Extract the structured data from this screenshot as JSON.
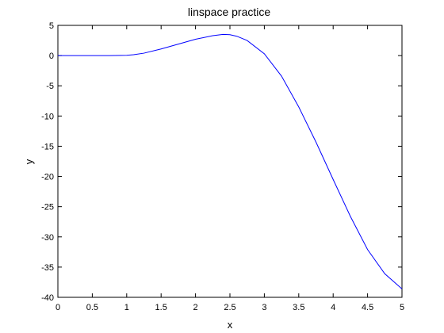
{
  "chart_data": {
    "type": "line",
    "title": "linspace practice",
    "xlabel": "x",
    "ylabel": "y",
    "xlim": [
      0,
      5
    ],
    "ylim": [
      -40,
      5
    ],
    "xticks": [
      0,
      0.5,
      1,
      1.5,
      2,
      2.5,
      3,
      3.5,
      4,
      4.5,
      5
    ],
    "xtick_labels": [
      "0",
      "0.5",
      "1",
      "1.5",
      "2",
      "2.5",
      "3",
      "3.5",
      "4",
      "4.5",
      "5"
    ],
    "yticks": [
      -40,
      -35,
      -30,
      -25,
      -20,
      -15,
      -10,
      -5,
      0,
      5
    ],
    "ytick_labels": [
      "-40",
      "-35",
      "-30",
      "-25",
      "-20",
      "-15",
      "-10",
      "-5",
      "0",
      "5"
    ],
    "grid": false,
    "series": [
      {
        "color": "#0000ff",
        "x": [
          0,
          0.25,
          0.5,
          0.75,
          1.0,
          1.1,
          1.25,
          1.5,
          1.75,
          2.0,
          2.25,
          2.4,
          2.5,
          2.6,
          2.75,
          3.0,
          3.25,
          3.5,
          3.75,
          4.0,
          4.25,
          4.5,
          4.75,
          5.0
        ],
        "y": [
          0,
          0,
          0,
          0,
          0.05,
          0.15,
          0.4,
          1.1,
          1.9,
          2.7,
          3.3,
          3.5,
          3.45,
          3.2,
          2.5,
          0.3,
          -3.4,
          -8.5,
          -14.3,
          -20.5,
          -26.6,
          -32.1,
          -36.1,
          -38.6
        ]
      }
    ]
  }
}
